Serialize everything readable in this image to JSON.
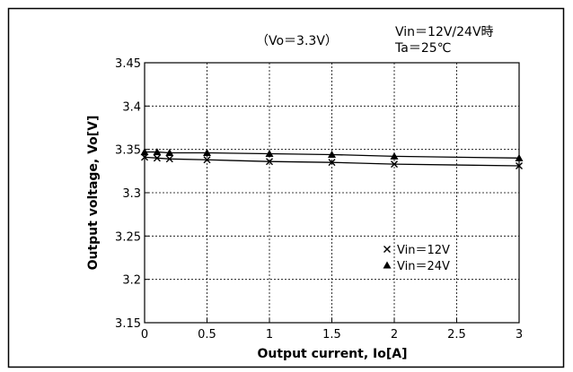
{
  "chart_data": {
    "type": "line",
    "title": "（Vo＝3.3V）",
    "annotation_lines": [
      "Vin＝12V/24V時",
      "Ta＝25℃"
    ],
    "xlabel": "Output current, Io[A]",
    "ylabel": "Output voltage, Vo[V]",
    "xlim": [
      0,
      3
    ],
    "ylim": [
      3.15,
      3.45
    ],
    "x_ticks": [
      0,
      0.5,
      1,
      1.5,
      2,
      2.5,
      3
    ],
    "x_tick_labels": [
      "0",
      "0.5",
      "1",
      "1.5",
      "2",
      "2.5",
      "3"
    ],
    "y_ticks": [
      3.15,
      3.2,
      3.25,
      3.3,
      3.35,
      3.4,
      3.45
    ],
    "y_tick_labels": [
      "3.15",
      "3.2",
      "3.25",
      "3.3",
      "3.35",
      "3.4",
      "3.45"
    ],
    "grid": true,
    "legend_position": "bottom-right",
    "series": [
      {
        "name": "Vin＝12V",
        "marker": "x",
        "color": "#000000",
        "x": [
          0,
          0.1,
          0.2,
          0.5,
          1,
          1.5,
          2,
          3
        ],
        "y": [
          3.341,
          3.34,
          3.339,
          3.338,
          3.336,
          3.335,
          3.333,
          3.331
        ]
      },
      {
        "name": "Vin＝24V",
        "marker": "triangle",
        "color": "#000000",
        "x": [
          0,
          0.1,
          0.2,
          0.5,
          1,
          1.5,
          2,
          3
        ],
        "y": [
          3.347,
          3.347,
          3.346,
          3.346,
          3.345,
          3.344,
          3.342,
          3.34
        ]
      }
    ]
  }
}
